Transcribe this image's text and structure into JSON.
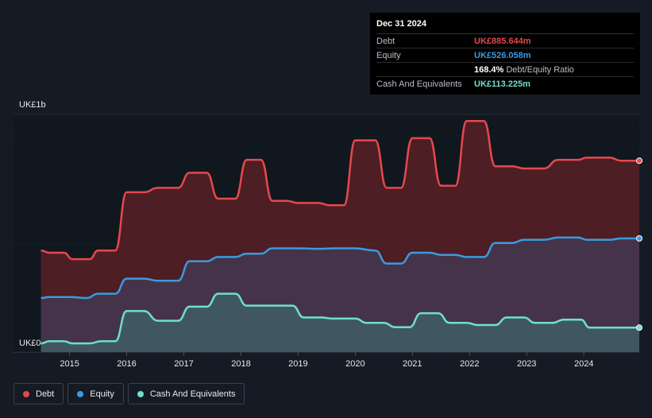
{
  "tooltip": {
    "date": "Dec 31 2024",
    "rows": [
      {
        "label": "Debt",
        "value": "UK£885.644m",
        "unit": "",
        "color": "#e5484d"
      },
      {
        "label": "Equity",
        "value": "UK£526.058m",
        "unit": "",
        "color": "#3b9ae1"
      },
      {
        "label": "",
        "value": "168.4%",
        "unit": "Debt/Equity Ratio",
        "color": "#ffffff"
      },
      {
        "label": "Cash And Equivalents",
        "value": "UK£113.225m",
        "unit": "",
        "color": "#6de0cf"
      }
    ]
  },
  "legend": [
    {
      "label": "Debt",
      "color": "#e5484d"
    },
    {
      "label": "Equity",
      "color": "#3b9ae1"
    },
    {
      "label": "Cash And Equivalents",
      "color": "#6de0cf"
    }
  ],
  "chart_data": {
    "type": "area",
    "y_axis_labels": [
      "UK£1b",
      "UK£0"
    ],
    "ylim": [
      0,
      1.1
    ],
    "xlim": [
      2014.45,
      2024.97
    ],
    "x_ticks": [
      "2015",
      "2016",
      "2017",
      "2018",
      "2019",
      "2020",
      "2021",
      "2022",
      "2023",
      "2024"
    ],
    "grid": true,
    "series": [
      {
        "name": "Debt",
        "color": "#e5484d",
        "points": [
          [
            2014.5,
            0.47
          ],
          [
            2014.65,
            0.46
          ],
          [
            2014.9,
            0.46
          ],
          [
            2015.05,
            0.43
          ],
          [
            2015.35,
            0.43
          ],
          [
            2015.5,
            0.47
          ],
          [
            2015.8,
            0.47
          ],
          [
            2016.0,
            0.74
          ],
          [
            2016.3,
            0.74
          ],
          [
            2016.55,
            0.76
          ],
          [
            2016.9,
            0.76
          ],
          [
            2017.1,
            0.83
          ],
          [
            2017.4,
            0.83
          ],
          [
            2017.6,
            0.71
          ],
          [
            2017.9,
            0.71
          ],
          [
            2018.1,
            0.89
          ],
          [
            2018.35,
            0.89
          ],
          [
            2018.55,
            0.7
          ],
          [
            2018.8,
            0.7
          ],
          [
            2019.0,
            0.69
          ],
          [
            2019.35,
            0.69
          ],
          [
            2019.55,
            0.68
          ],
          [
            2019.8,
            0.68
          ],
          [
            2020.0,
            0.98
          ],
          [
            2020.35,
            0.98
          ],
          [
            2020.55,
            0.76
          ],
          [
            2020.8,
            0.76
          ],
          [
            2021.0,
            0.99
          ],
          [
            2021.3,
            0.99
          ],
          [
            2021.5,
            0.77
          ],
          [
            2021.75,
            0.77
          ],
          [
            2021.95,
            1.07
          ],
          [
            2022.25,
            1.07
          ],
          [
            2022.45,
            0.86
          ],
          [
            2022.75,
            0.86
          ],
          [
            2022.95,
            0.85
          ],
          [
            2023.3,
            0.85
          ],
          [
            2023.55,
            0.89
          ],
          [
            2023.9,
            0.89
          ],
          [
            2024.05,
            0.9
          ],
          [
            2024.45,
            0.9
          ],
          [
            2024.65,
            0.886
          ],
          [
            2024.97,
            0.886
          ]
        ]
      },
      {
        "name": "Equity",
        "color": "#3b9ae1",
        "points": [
          [
            2014.5,
            0.25
          ],
          [
            2014.65,
            0.255
          ],
          [
            2015.0,
            0.255
          ],
          [
            2015.3,
            0.25
          ],
          [
            2015.5,
            0.27
          ],
          [
            2015.8,
            0.27
          ],
          [
            2016.0,
            0.34
          ],
          [
            2016.3,
            0.34
          ],
          [
            2016.55,
            0.33
          ],
          [
            2016.9,
            0.33
          ],
          [
            2017.1,
            0.42
          ],
          [
            2017.4,
            0.42
          ],
          [
            2017.6,
            0.44
          ],
          [
            2017.9,
            0.44
          ],
          [
            2018.1,
            0.455
          ],
          [
            2018.35,
            0.455
          ],
          [
            2018.55,
            0.48
          ],
          [
            2019.0,
            0.48
          ],
          [
            2019.35,
            0.478
          ],
          [
            2019.65,
            0.48
          ],
          [
            2020.0,
            0.48
          ],
          [
            2020.35,
            0.47
          ],
          [
            2020.55,
            0.41
          ],
          [
            2020.8,
            0.41
          ],
          [
            2021.0,
            0.46
          ],
          [
            2021.3,
            0.46
          ],
          [
            2021.5,
            0.45
          ],
          [
            2021.75,
            0.45
          ],
          [
            2021.95,
            0.44
          ],
          [
            2022.25,
            0.44
          ],
          [
            2022.45,
            0.505
          ],
          [
            2022.75,
            0.505
          ],
          [
            2022.95,
            0.52
          ],
          [
            2023.3,
            0.52
          ],
          [
            2023.55,
            0.53
          ],
          [
            2023.9,
            0.53
          ],
          [
            2024.05,
            0.52
          ],
          [
            2024.45,
            0.52
          ],
          [
            2024.65,
            0.526
          ],
          [
            2024.97,
            0.526
          ]
        ]
      },
      {
        "name": "Cash And Equivalents",
        "color": "#6de0cf",
        "points": [
          [
            2014.5,
            0.04
          ],
          [
            2014.65,
            0.05
          ],
          [
            2014.9,
            0.05
          ],
          [
            2015.05,
            0.04
          ],
          [
            2015.35,
            0.04
          ],
          [
            2015.55,
            0.05
          ],
          [
            2015.8,
            0.05
          ],
          [
            2016.0,
            0.19
          ],
          [
            2016.3,
            0.19
          ],
          [
            2016.55,
            0.145
          ],
          [
            2016.9,
            0.145
          ],
          [
            2017.1,
            0.21
          ],
          [
            2017.4,
            0.21
          ],
          [
            2017.6,
            0.27
          ],
          [
            2017.9,
            0.27
          ],
          [
            2018.1,
            0.215
          ],
          [
            2018.35,
            0.215
          ],
          [
            2018.55,
            0.215
          ],
          [
            2018.9,
            0.215
          ],
          [
            2019.1,
            0.16
          ],
          [
            2019.4,
            0.16
          ],
          [
            2019.6,
            0.155
          ],
          [
            2020.0,
            0.155
          ],
          [
            2020.2,
            0.135
          ],
          [
            2020.5,
            0.135
          ],
          [
            2020.7,
            0.115
          ],
          [
            2020.95,
            0.115
          ],
          [
            2021.15,
            0.18
          ],
          [
            2021.45,
            0.18
          ],
          [
            2021.65,
            0.135
          ],
          [
            2021.95,
            0.135
          ],
          [
            2022.15,
            0.125
          ],
          [
            2022.45,
            0.125
          ],
          [
            2022.65,
            0.16
          ],
          [
            2022.95,
            0.16
          ],
          [
            2023.15,
            0.135
          ],
          [
            2023.45,
            0.135
          ],
          [
            2023.65,
            0.15
          ],
          [
            2023.95,
            0.15
          ],
          [
            2024.1,
            0.113
          ],
          [
            2024.5,
            0.113
          ],
          [
            2024.97,
            0.113
          ]
        ]
      }
    ]
  }
}
